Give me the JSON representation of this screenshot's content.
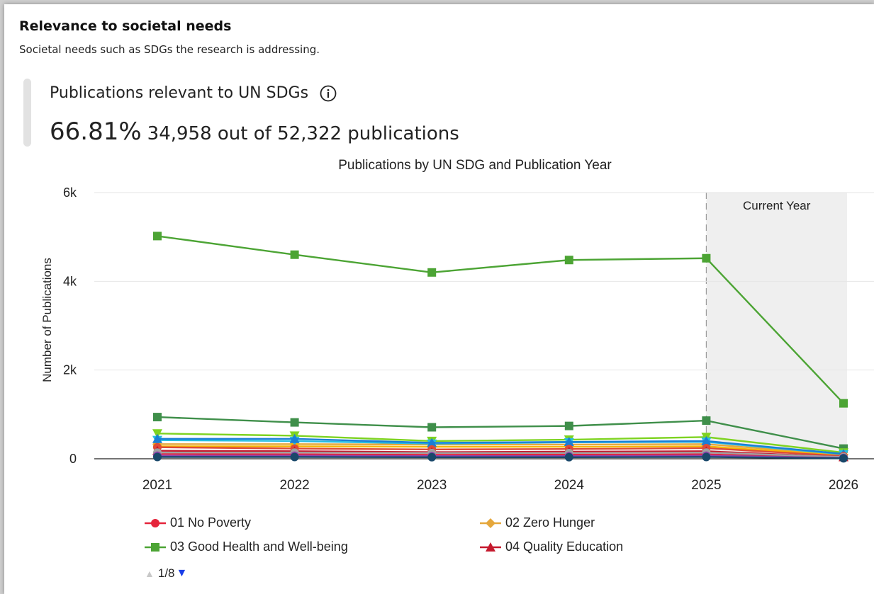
{
  "section": {
    "title": "Relevance to societal needs",
    "description": "Societal needs such as SDGs the research is addressing."
  },
  "metric": {
    "title": "Publications relevant to UN SDGs",
    "percent": "66.81%",
    "detail": "34,958 out of 52,322 publications"
  },
  "chart_data": {
    "type": "line",
    "title": "Publications by UN SDG and Publication Year",
    "ylabel": "Number of Publications",
    "xlabel": "",
    "ylim": [
      0,
      6000
    ],
    "y_ticks": [
      "0",
      "2k",
      "4k",
      "6k"
    ],
    "categories": [
      "2021",
      "2022",
      "2023",
      "2024",
      "2025",
      "2026"
    ],
    "current_year_band_label": "Current Year",
    "grid": true,
    "legend_position": "bottom",
    "legend_page": "1/8",
    "series": [
      {
        "name": "",
        "color": "#3f8f4a",
        "marker": "square",
        "values": [
          940,
          820,
          710,
          740,
          860,
          230
        ]
      },
      {
        "name": "03 Good Health and Well-being",
        "color": "#4ca434",
        "marker": "square",
        "values": [
          5020,
          4600,
          4200,
          4480,
          4520,
          1250
        ]
      },
      {
        "name": "",
        "color": "#7ed321",
        "marker": "triangle-down",
        "values": [
          570,
          520,
          400,
          430,
          490,
          140
        ]
      },
      {
        "name": "02 Zero Hunger",
        "color": "#e5a73c",
        "marker": "diamond",
        "values": [
          330,
          330,
          320,
          320,
          330,
          90
        ]
      },
      {
        "name": "",
        "color": "#f7b500",
        "marker": "circle",
        "values": [
          280,
          280,
          270,
          270,
          280,
          70
        ]
      },
      {
        "name": "",
        "color": "#26bde2",
        "marker": "triangle-down",
        "values": [
          420,
          400,
          340,
          370,
          380,
          100
        ]
      },
      {
        "name": "",
        "color": "#1a7fd6",
        "marker": "triangle",
        "values": [
          450,
          450,
          360,
          380,
          400,
          110
        ]
      },
      {
        "name": "",
        "color": "#dd4b39",
        "marker": "circle",
        "values": [
          260,
          230,
          210,
          220,
          240,
          60
        ]
      },
      {
        "name": "04 Quality Education",
        "color": "#c5192d",
        "marker": "triangle",
        "values": [
          180,
          170,
          150,
          160,
          170,
          40
        ]
      },
      {
        "name": "01 No Poverty",
        "color": "#e5243b",
        "marker": "circle",
        "values": [
          110,
          100,
          90,
          95,
          100,
          25
        ]
      },
      {
        "name": "",
        "color": "#a0a0a0",
        "marker": "circle",
        "values": [
          140,
          140,
          130,
          130,
          140,
          40
        ]
      },
      {
        "name": "",
        "color": "#8e44ad",
        "marker": "circle",
        "values": [
          70,
          70,
          60,
          60,
          70,
          20
        ]
      },
      {
        "name": "",
        "color": "#19486a",
        "marker": "circle",
        "values": [
          40,
          40,
          35,
          35,
          40,
          10
        ]
      }
    ]
  },
  "legend": [
    {
      "label": "01 No Poverty",
      "color": "#e5243b",
      "marker": "circle"
    },
    {
      "label": "02 Zero Hunger",
      "color": "#e5a73c",
      "marker": "diamond"
    },
    {
      "label": "03 Good Health and Well-being",
      "color": "#4ca434",
      "marker": "square"
    },
    {
      "label": "04 Quality Education",
      "color": "#c5192d",
      "marker": "triangle"
    }
  ]
}
